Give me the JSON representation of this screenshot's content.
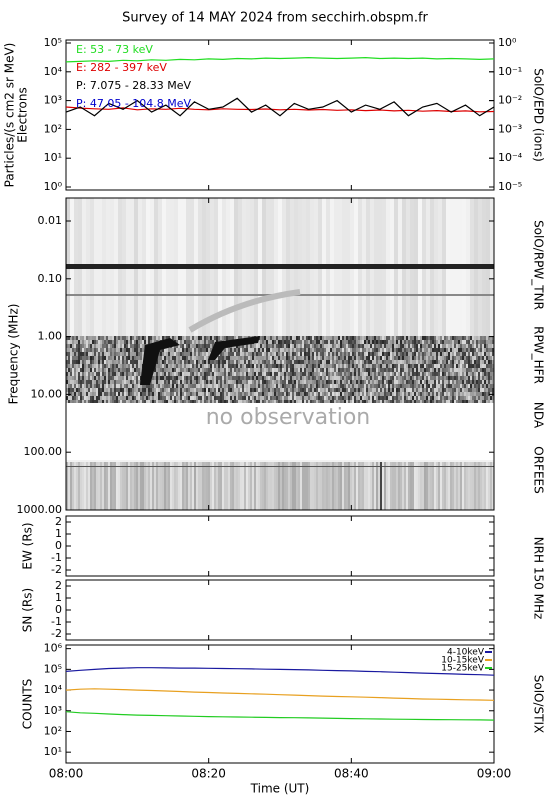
{
  "chart_data": [
    {
      "type": "line",
      "title": "Survey of 14 MAY 2024 from secchirh.obspm.fr",
      "ylabel": [
        "Particles/(s cm2 sr MeV)",
        "Electrons"
      ],
      "y2label": "SolO/EPD (ions)",
      "log_y": true,
      "xlim": [
        "08:00",
        "09:00"
      ],
      "x": [
        "08:00",
        "08:02",
        "08:04",
        "08:06",
        "08:08",
        "08:10",
        "08:12",
        "08:14",
        "08:16",
        "08:18",
        "08:20",
        "08:22",
        "08:24",
        "08:26",
        "08:28",
        "08:30",
        "08:32",
        "08:34",
        "08:36",
        "08:38",
        "08:40",
        "08:42",
        "08:44",
        "08:46",
        "08:48",
        "08:50",
        "08:52",
        "08:54",
        "08:56",
        "08:58",
        "09:00"
      ],
      "ylim": [
        1,
        100000
      ],
      "yticks": [
        {
          "value": 1,
          "label": "10⁰"
        },
        {
          "value": 10,
          "label": "10¹"
        },
        {
          "value": 100,
          "label": "10²"
        },
        {
          "value": 1000,
          "label": "10³"
        },
        {
          "value": 10000,
          "label": "10⁴"
        },
        {
          "value": 100000,
          "label": "10⁵"
        }
      ],
      "y2lim": [
        1e-05,
        1
      ],
      "y2ticks": [
        {
          "value": 1e-05,
          "label": "10⁻⁵"
        },
        {
          "value": 0.0001,
          "label": "10⁻⁴"
        },
        {
          "value": 0.001,
          "label": "10⁻³"
        },
        {
          "value": 0.01,
          "label": "10⁻²"
        },
        {
          "value": 0.1,
          "label": "10⁻¹"
        },
        {
          "value": 1,
          "label": "10⁰"
        }
      ],
      "series": [
        {
          "name": "E: 53 - 73 keV",
          "color": "#22dd22",
          "values": [
            22000,
            23000,
            24000,
            23000,
            25000,
            24000,
            26000,
            25000,
            27000,
            26000,
            28000,
            27000,
            29000,
            28000,
            30000,
            29000,
            30000,
            31000,
            30000,
            29000,
            30000,
            31000,
            29000,
            30000,
            29000,
            30000,
            28000,
            29000,
            28000,
            27000,
            28000
          ]
        },
        {
          "name": "E: 282 - 397 keV",
          "color": "#dd0000",
          "values": [
            600,
            550,
            520,
            500,
            560,
            480,
            520,
            500,
            540,
            500,
            480,
            520,
            500,
            490,
            510,
            480,
            500,
            470,
            490,
            460,
            480,
            450,
            470,
            440,
            460,
            430,
            450,
            420,
            440,
            410,
            420
          ]
        },
        {
          "name": "P: 7.075 - 28.33 MeV",
          "color": "#000000",
          "axis": "y2",
          "values": [
            0.004,
            0.006,
            0.003,
            0.008,
            0.005,
            0.01,
            0.004,
            0.007,
            0.003,
            0.009,
            0.005,
            0.006,
            0.012,
            0.004,
            0.007,
            0.003,
            0.008,
            0.005,
            0.006,
            0.01,
            0.004,
            0.007,
            0.005,
            0.009,
            0.003,
            0.006,
            0.008,
            0.004,
            0.007,
            0.003,
            0.006
          ]
        },
        {
          "name": "P: 47.05 - 104.8 MeV",
          "color": "#0000cc",
          "axis": "y2",
          "values": [
            null,
            null,
            null,
            null,
            null,
            null,
            null,
            null,
            null,
            null,
            null,
            null,
            null,
            null,
            null,
            null,
            null,
            null,
            null,
            null,
            null,
            null,
            null,
            null,
            null,
            null,
            null,
            null,
            null,
            null,
            null
          ]
        }
      ]
    },
    {
      "type": "spectrogram",
      "ylabel": "Frequency (MHz)",
      "log_y": true,
      "y_inverted": true,
      "ylim": [
        0.004,
        1000
      ],
      "yticks": [
        {
          "value": 0.01,
          "label": "0.01"
        },
        {
          "value": 0.1,
          "label": "0.10"
        },
        {
          "value": 1,
          "label": "1.00"
        },
        {
          "value": 10,
          "label": "10.00"
        },
        {
          "value": 100,
          "label": "100.00"
        },
        {
          "value": 1000,
          "label": "1000.00"
        }
      ],
      "instrument_labels": [
        "SolO/RPW_TNR",
        "RPW_HFR",
        "NDA",
        "ORFEES"
      ],
      "annotation": "no observation"
    },
    {
      "type": "position",
      "ylabel": "EW (Rs)",
      "y2label": "NRH 150 MHz",
      "ylim": [
        -2.5,
        2.5
      ],
      "yticks": [
        2,
        1,
        0,
        -1,
        -2
      ]
    },
    {
      "type": "position",
      "ylabel": "SN (Rs)",
      "ylim": [
        -2.5,
        2.5
      ],
      "yticks": [
        2,
        1,
        0,
        -1,
        -2
      ]
    },
    {
      "type": "line",
      "ylabel": "COUNTS",
      "y2label": "SolO/STIX",
      "log_y": true,
      "xlabel": "Time (UT)",
      "xlim": [
        "08:00",
        "09:00"
      ],
      "xticks": [
        "08:00",
        "08:20",
        "08:40",
        "09:00"
      ],
      "x": [
        "08:00",
        "08:02",
        "08:04",
        "08:06",
        "08:08",
        "08:10",
        "08:12",
        "08:14",
        "08:16",
        "08:18",
        "08:20",
        "08:22",
        "08:24",
        "08:26",
        "08:28",
        "08:30",
        "08:32",
        "08:34",
        "08:36",
        "08:38",
        "08:40",
        "08:42",
        "08:44",
        "08:46",
        "08:48",
        "08:50",
        "08:52",
        "08:54",
        "08:56",
        "08:58",
        "09:00"
      ],
      "ylim": [
        3,
        1500000
      ],
      "yticks": [
        {
          "value": 10,
          "label": "10¹"
        },
        {
          "value": 100,
          "label": "10²"
        },
        {
          "value": 1000,
          "label": "10³"
        },
        {
          "value": 10000,
          "label": "10⁴"
        },
        {
          "value": 100000,
          "label": "10⁵"
        },
        {
          "value": 1000000,
          "label": "10⁶"
        }
      ],
      "series": [
        {
          "name": "4-10keV",
          "color": "#1a1aa0",
          "values": [
            80000,
            90000,
            100000,
            110000,
            115000,
            120000,
            120000,
            118000,
            115000,
            115000,
            112000,
            110000,
            108000,
            105000,
            102000,
            100000,
            97000,
            94000,
            90000,
            87000,
            84000,
            80000,
            77000,
            73000,
            70000,
            66000,
            63000,
            60000,
            57000,
            55000,
            52000
          ]
        },
        {
          "name": "10-15keV",
          "color": "#e8a020",
          "values": [
            10000,
            11000,
            11500,
            11000,
            10500,
            10000,
            9500,
            9000,
            8500,
            8000,
            7600,
            7200,
            6900,
            6600,
            6300,
            6000,
            5700,
            5400,
            5100,
            4900,
            4700,
            4500,
            4300,
            4100,
            3900,
            3700,
            3600,
            3500,
            3400,
            3300,
            3200
          ]
        },
        {
          "name": "15-25keV",
          "color": "#22cc22",
          "values": [
            900,
            800,
            750,
            700,
            650,
            620,
            600,
            580,
            560,
            540,
            520,
            510,
            500,
            490,
            480,
            470,
            460,
            450,
            440,
            430,
            420,
            410,
            400,
            390,
            385,
            380,
            375,
            370,
            365,
            360,
            355
          ]
        }
      ]
    }
  ]
}
